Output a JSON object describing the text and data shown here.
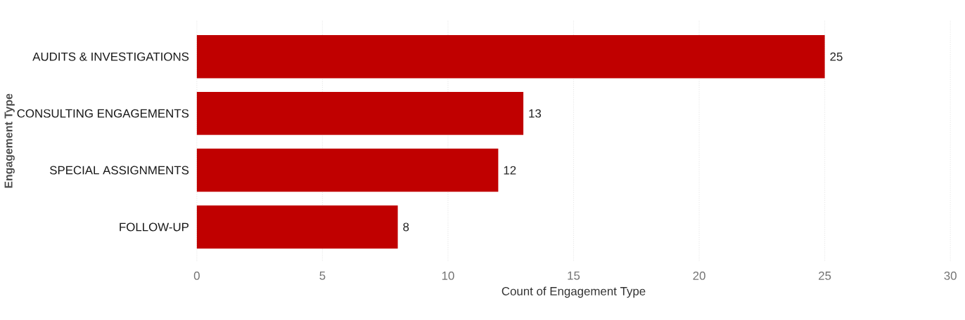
{
  "chart_data": {
    "type": "bar",
    "orientation": "horizontal",
    "xlabel": "Count of Engagement Type",
    "ylabel": "Engagement Type",
    "categories": [
      "AUDITS & INVESTIGATIONS",
      "CONSULTING ENGAGEMENTS",
      "SPECIAL ASSIGNMENTS",
      "FOLLOW-UP"
    ],
    "values": [
      25,
      13,
      12,
      8
    ],
    "color": "#c00000",
    "xlim": [
      0,
      30
    ],
    "xticks": [
      0,
      5,
      10,
      15,
      20,
      25,
      30
    ],
    "grid": "x",
    "data_labels": true
  }
}
